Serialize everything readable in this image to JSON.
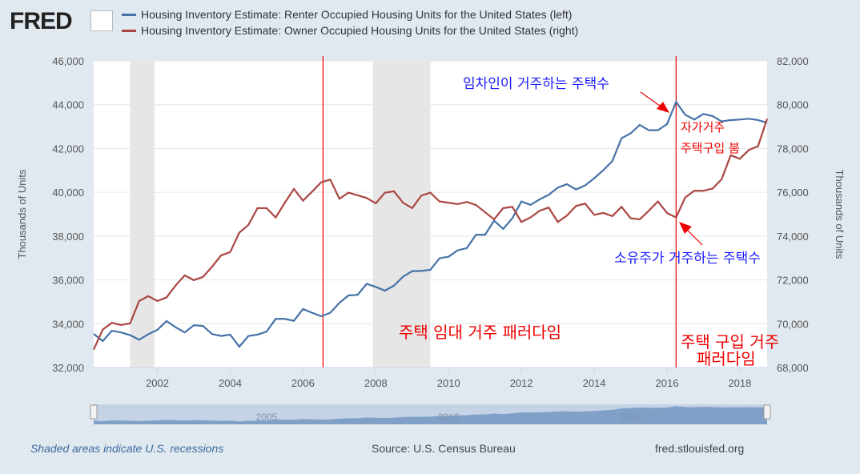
{
  "header": {
    "logo": "FRED",
    "legend": [
      {
        "label": "Housing Inventory Estimate: Renter Occupied Housing Units for the United States (left)",
        "color": "#4572a7"
      },
      {
        "label": "Housing Inventory Estimate: Owner Occupied Housing Units for the United States (right)",
        "color": "#aa4643"
      }
    ]
  },
  "chart_data": {
    "type": "line",
    "xlim": [
      2000.25,
      2018.75
    ],
    "x_start": 2000.25,
    "x_step": 0.25,
    "x_ticks": [
      "2002",
      "2004",
      "2006",
      "2008",
      "2010",
      "2012",
      "2014",
      "2016",
      "2018"
    ],
    "y_left": {
      "label": "Thousands of Units",
      "lim": [
        32000,
        46000
      ],
      "ticks": [
        "32,000",
        "34,000",
        "36,000",
        "38,000",
        "40,000",
        "42,000",
        "44,000",
        "46,000"
      ]
    },
    "y_right": {
      "label": "Thousands of Units",
      "lim": [
        68000,
        82000
      ],
      "ticks": [
        "68,000",
        "70,000",
        "72,000",
        "74,000",
        "76,000",
        "78,000",
        "80,000",
        "82,000"
      ]
    },
    "series": [
      {
        "name": "Renter Occupied (left)",
        "axis": "left",
        "color": "#4572a7",
        "values": [
          33536,
          33207,
          33680,
          33600,
          33480,
          33270,
          33520,
          33720,
          34120,
          33840,
          33600,
          33930,
          33900,
          33530,
          33440,
          33500,
          32950,
          33440,
          33500,
          33640,
          34220,
          34220,
          34130,
          34670,
          34500,
          34340,
          34500,
          34950,
          35290,
          35320,
          35820,
          35680,
          35510,
          35740,
          36150,
          36400,
          36410,
          36460,
          36986,
          37060,
          37352,
          37450,
          38058,
          38058,
          38704,
          38326,
          38813,
          39580,
          39422,
          39678,
          39885,
          40214,
          40373,
          40129,
          40312,
          40640,
          41006,
          41432,
          42468,
          42687,
          43077,
          42833,
          42833,
          43113,
          44124,
          43539,
          43320,
          43576,
          43479,
          43235,
          43296,
          43320,
          43357,
          43296,
          43174
        ]
      },
      {
        "name": "Owner Occupied (right)",
        "axis": "right",
        "color": "#aa4643",
        "values": [
          68821,
          69735,
          70039,
          69941,
          70015,
          71038,
          71257,
          71038,
          71196,
          71744,
          72207,
          71988,
          72134,
          72597,
          73121,
          73267,
          74156,
          74509,
          75276,
          75276,
          74850,
          75520,
          76153,
          75617,
          76031,
          76458,
          76580,
          75703,
          75983,
          75861,
          75739,
          75496,
          75983,
          76044,
          75520,
          75276,
          75849,
          75983,
          75581,
          75520,
          75459,
          75557,
          75423,
          75094,
          74765,
          75276,
          75337,
          74643,
          74850,
          75155,
          75301,
          74643,
          74935,
          75374,
          75484,
          74972,
          75057,
          74911,
          75337,
          74813,
          74765,
          75155,
          75581,
          75057,
          74850,
          75764,
          76068,
          76068,
          76166,
          76592,
          77688,
          77530,
          77932,
          78102,
          79357
        ]
      }
    ],
    "recessions": [
      [
        2001.25,
        2001.92
      ],
      [
        2007.92,
        2009.5
      ]
    ],
    "marker_lines": [
      2006.55,
      2016.25
    ],
    "annotations": {
      "renter": "임차인이 거주하는 주택수",
      "boom1": "자가거주",
      "boom2": "주택구입 붐",
      "owner": "소유주가 거주하는 주택수",
      "rent_paradigm": "주택 임대 거주 패러다임",
      "buy_paradigm1": "주택 구입 거주",
      "buy_paradigm2": "패러다임"
    },
    "navigator_ticks": [
      "2005",
      "2010",
      "2015"
    ]
  },
  "footer": {
    "recession_note": "Shaded areas indicate U.S. recessions",
    "source": "Source: U.S. Census Bureau",
    "site": "fred.stlouisfed.org"
  }
}
